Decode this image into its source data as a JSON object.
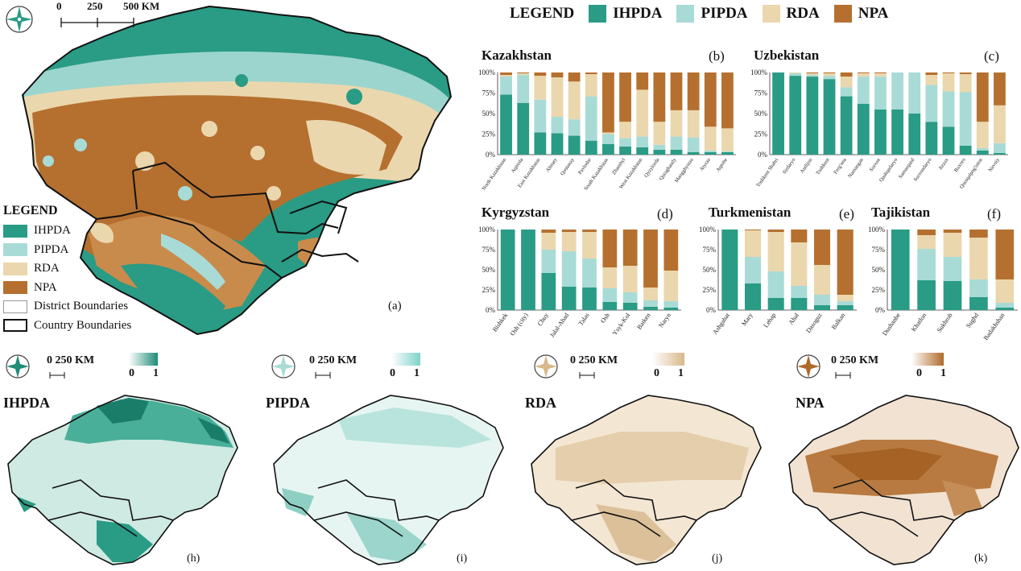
{
  "colors": {
    "IHPDA": "#2a9b85",
    "PIPDA": "#a8dbd6",
    "RDA": "#ebd7ad",
    "NPA": "#b5702f",
    "boundary": "#111111"
  },
  "top_legend": {
    "title": "LEGEND",
    "items": [
      "IHPDA",
      "PIPDA",
      "RDA",
      "NPA"
    ]
  },
  "main_map": {
    "scale_labels": [
      "0",
      "250",
      "500 KM"
    ],
    "panel_label": "(a)",
    "legend": {
      "title": "LEGEND",
      "items": [
        {
          "label": "IHPDA",
          "kind": "IHPDA"
        },
        {
          "label": "PIPDA",
          "kind": "PIPDA"
        },
        {
          "label": "RDA",
          "kind": "RDA"
        },
        {
          "label": "NPA",
          "kind": "NPA"
        },
        {
          "label": "District Boundaries",
          "kind": "district"
        },
        {
          "label": "Country Boundaries",
          "kind": "country"
        }
      ]
    }
  },
  "small_maps": [
    {
      "title": "IHPDA",
      "label": "(h)",
      "scale": "0  250 KM",
      "ramp_min": "0",
      "ramp_max": "1",
      "color": "#1f8c78",
      "icon": "compass-rose-icon"
    },
    {
      "title": "PIPDA",
      "label": "(i)",
      "scale": "0  250 KM",
      "ramp_min": "0",
      "ramp_max": "1",
      "color": "#7ed3c8",
      "icon": "compass-rose-icon"
    },
    {
      "title": "RDA",
      "label": "(j)",
      "scale": "0  250 KM",
      "ramp_min": "0",
      "ramp_max": "1",
      "color": "#d9b88b",
      "icon": "compass-rose-icon"
    },
    {
      "title": "NPA",
      "label": "(k)",
      "scale": "0  250 KM",
      "ramp_min": "0",
      "ramp_max": "1",
      "color": "#b06a2a",
      "icon": "compass-rose-icon"
    }
  ],
  "chart_data": [
    {
      "type": "bar",
      "title": "Kazakhstan",
      "panel_label": "(b)",
      "stacked": true,
      "ylim": [
        0,
        100
      ],
      "yticks": [
        "0%",
        "25%",
        "50%",
        "75%",
        "100%"
      ],
      "categories": [
        "North Kazakhstan",
        "Aqmola",
        "East Kazakhstan",
        "Almaty",
        "Qostanay",
        "Pavlodar",
        "South Kazakhstan",
        "Zhambyl",
        "West Kazakhstan",
        "Qyzylorda",
        "Qaraghandy",
        "Mangghystau",
        "Atyrau",
        "Aqtobe"
      ],
      "series": [
        {
          "name": "IHPDA",
          "values": [
            73,
            63,
            27,
            26,
            23,
            17,
            13,
            10,
            9,
            6,
            6,
            3,
            3,
            3
          ]
        },
        {
          "name": "PIPDA",
          "values": [
            22,
            34,
            40,
            20,
            20,
            54,
            12,
            10,
            13,
            6,
            16,
            18,
            2,
            1
          ]
        },
        {
          "name": "RDA",
          "values": [
            2,
            2,
            29,
            48,
            46,
            27,
            2,
            20,
            57,
            28,
            32,
            33,
            29,
            28
          ]
        },
        {
          "name": "NPA",
          "values": [
            3,
            1,
            4,
            6,
            11,
            2,
            73,
            60,
            21,
            60,
            46,
            46,
            66,
            68
          ]
        }
      ]
    },
    {
      "type": "bar",
      "title": "Uzbekistan",
      "panel_label": "(c)",
      "stacked": true,
      "ylim": [
        0,
        100
      ],
      "yticks": [
        "0%",
        "25%",
        "50%",
        "75%",
        "100%"
      ],
      "categories": [
        "Toshkent Shahri",
        "Sirdaryo",
        "Andijon",
        "Toshkent",
        "Ferg'ona",
        "Namangan",
        "Surxon",
        "Qashqadaryo",
        "Samarqand",
        "Surxondaryo",
        "Jizzax",
        "Buxoro",
        "Qoraqalpog'iston",
        "Navoiy"
      ],
      "series": [
        {
          "name": "IHPDA",
          "values": [
            100,
            96,
            95,
            92,
            71,
            62,
            55,
            55,
            50,
            40,
            34,
            11,
            5,
            2
          ]
        },
        {
          "name": "PIPDA",
          "values": [
            0,
            3,
            2,
            4,
            11,
            33,
            40,
            45,
            50,
            45,
            43,
            65,
            3,
            12
          ]
        },
        {
          "name": "RDA",
          "values": [
            0,
            1,
            2,
            3,
            13,
            4,
            4,
            0,
            0,
            12,
            22,
            22,
            32,
            46
          ]
        },
        {
          "name": "NPA",
          "values": [
            0,
            0,
            1,
            1,
            5,
            1,
            1,
            0,
            0,
            3,
            1,
            2,
            60,
            40
          ]
        }
      ]
    },
    {
      "type": "bar",
      "title": "Kyrgyzstan",
      "panel_label": "(d)",
      "stacked": true,
      "ylim": [
        0,
        100
      ],
      "yticks": [
        "0%",
        "25%",
        "50%",
        "75%",
        "100%"
      ],
      "categories": [
        "Bishkek",
        "Osh (city)",
        "Chuy",
        "Jalal-Abad",
        "Talas",
        "Osh",
        "Ysyk-Kol",
        "Batken",
        "Naryn"
      ],
      "series": [
        {
          "name": "IHPDA",
          "values": [
            100,
            100,
            46,
            29,
            28,
            10,
            9,
            4,
            3
          ]
        },
        {
          "name": "PIPDA",
          "values": [
            0,
            0,
            29,
            44,
            36,
            17,
            13,
            8,
            8
          ]
        },
        {
          "name": "RDA",
          "values": [
            0,
            0,
            21,
            24,
            33,
            26,
            33,
            16,
            38
          ]
        },
        {
          "name": "NPA",
          "values": [
            0,
            0,
            4,
            3,
            3,
            47,
            45,
            72,
            51
          ]
        }
      ]
    },
    {
      "type": "bar",
      "title": "Turkmenistan",
      "panel_label": "(e)",
      "stacked": true,
      "ylim": [
        0,
        100
      ],
      "yticks": [
        "0%",
        "25%",
        "50%",
        "75%",
        "100%"
      ],
      "categories": [
        "Ashgabat",
        "Mary",
        "Lebap",
        "Ahal",
        "Dasoguz",
        "Balkan"
      ],
      "series": [
        {
          "name": "IHPDA",
          "values": [
            100,
            33,
            15,
            15,
            6,
            6
          ]
        },
        {
          "name": "PIPDA",
          "values": [
            0,
            33,
            33,
            15,
            13,
            5
          ]
        },
        {
          "name": "RDA",
          "values": [
            0,
            33,
            49,
            54,
            37,
            8
          ]
        },
        {
          "name": "NPA",
          "values": [
            0,
            1,
            3,
            16,
            44,
            81
          ]
        }
      ]
    },
    {
      "type": "bar",
      "title": "Tajikistan",
      "panel_label": "(f)",
      "stacked": true,
      "ylim": [
        0,
        100
      ],
      "yticks": [
        "0%",
        "25%",
        "50%",
        "75%",
        "100%"
      ],
      "categories": [
        "Dushanbe",
        "Khatlon",
        "Sukhrob",
        "Sughd",
        "Badakhshan"
      ],
      "series": [
        {
          "name": "IHPDA",
          "values": [
            100,
            37,
            36,
            16,
            3
          ]
        },
        {
          "name": "PIPDA",
          "values": [
            0,
            39,
            30,
            22,
            6
          ]
        },
        {
          "name": "RDA",
          "values": [
            0,
            17,
            30,
            52,
            29
          ]
        },
        {
          "name": "NPA",
          "values": [
            0,
            7,
            4,
            10,
            62
          ]
        }
      ]
    }
  ]
}
